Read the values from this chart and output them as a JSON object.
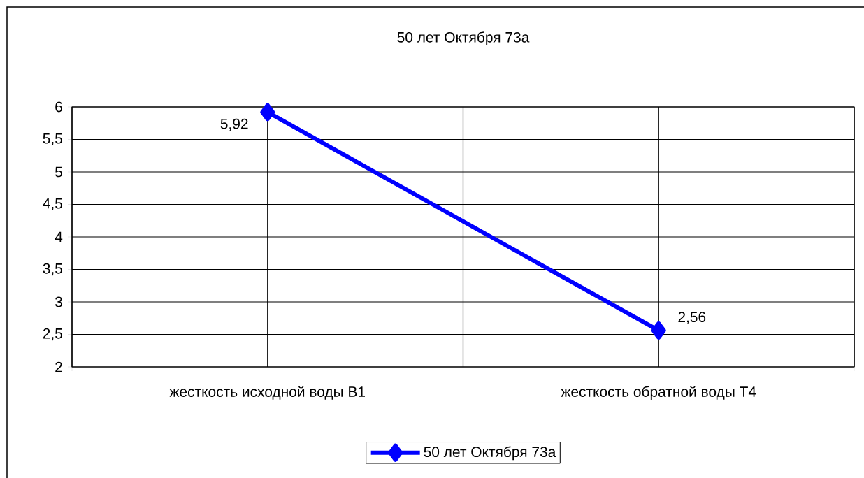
{
  "chart_data": {
    "type": "line",
    "title": "50 лет Октября 73а",
    "categories": [
      "жесткость исходной воды В1",
      "жесткость обратной воды Т4"
    ],
    "series": [
      {
        "name": "50 лет Октября 73а",
        "color": "#0000ff",
        "values": [
          5.92,
          2.56
        ],
        "value_labels": [
          "5,92",
          "2,56"
        ]
      }
    ],
    "ylim": [
      2,
      6
    ],
    "yticks": [
      2,
      {
        "value": 2.5,
        "label": "2,5"
      },
      3,
      {
        "value": 3.5,
        "label": "3,5"
      },
      4,
      {
        "value": 4.5,
        "label": "4,5"
      },
      5,
      {
        "value": 5.5,
        "label": "5,5"
      },
      6
    ],
    "grid": true,
    "legend": "bottom",
    "marker": "diamond",
    "line_style": "solid"
  }
}
